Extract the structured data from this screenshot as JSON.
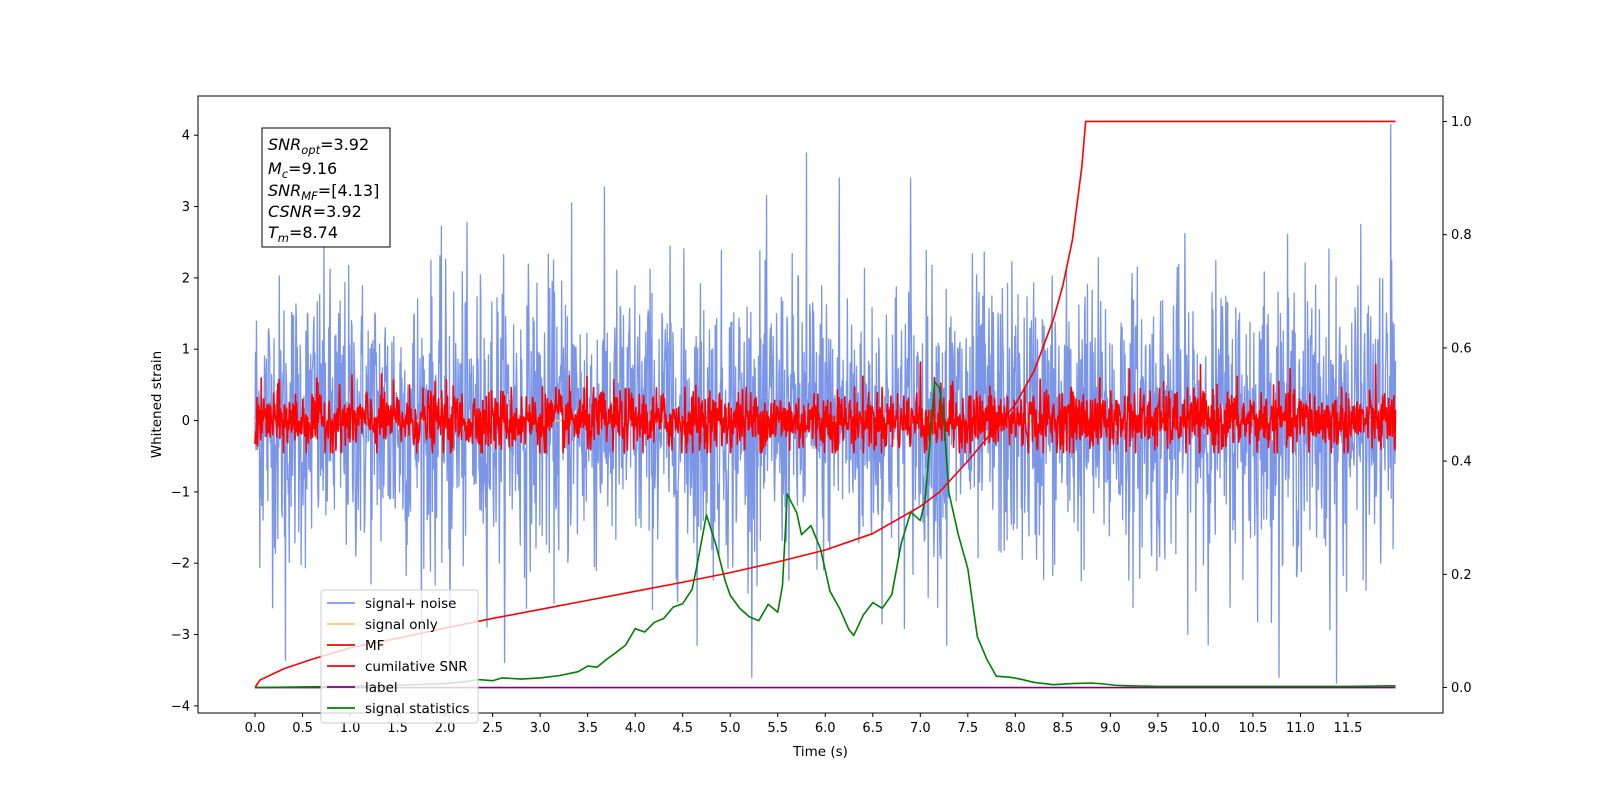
{
  "chart_data": {
    "type": "line",
    "xlabel": "Time (s)",
    "ylabel": "Whitened strain",
    "xlim": [
      -0.6,
      12.5
    ],
    "ylim": [
      -4.1,
      4.55
    ],
    "ylim_right": [
      -0.045,
      1.045
    ],
    "x_ticks": [
      0.0,
      0.5,
      1.0,
      1.5,
      2.0,
      2.5,
      3.0,
      3.5,
      4.0,
      4.5,
      5.0,
      5.5,
      6.0,
      6.5,
      7.0,
      7.5,
      8.0,
      8.5,
      9.0,
      9.5,
      10.0,
      10.5,
      11.0,
      11.5
    ],
    "x_tick_labels": [
      "0.0",
      "0.5",
      "1.0",
      "1.5",
      "2.0",
      "2.5",
      "3.0",
      "3.5",
      "4.0",
      "4.5",
      "5.0",
      "5.5",
      "6.0",
      "6.5",
      "7.0",
      "7.5",
      "8.0",
      "8.5",
      "9.0",
      "9.5",
      "10.0",
      "10.5",
      "11.0",
      "11.5"
    ],
    "y_ticks_left": [
      -4,
      -3,
      -2,
      -1,
      0,
      1,
      2,
      3,
      4
    ],
    "y_tick_labels_left": [
      "−4",
      "−3",
      "−2",
      "−1",
      "0",
      "1",
      "2",
      "3",
      "4"
    ],
    "y_ticks_right": [
      0.0,
      0.2,
      0.4,
      0.6,
      0.8,
      1.0
    ],
    "y_tick_labels_right": [
      "0.0",
      "0.2",
      "0.4",
      "0.6",
      "0.8",
      "1.0"
    ],
    "grid": false,
    "legend_position": "lower-left",
    "annotation": {
      "SNR_opt": "3.92",
      "M_c": "9.16",
      "SNR_MF": "[4.13]",
      "CSNR": "3.92",
      "T_m": "8.74"
    },
    "series": [
      {
        "name": "signal+ noise",
        "axis": "left",
        "color": "#7b95e8",
        "kind": "noise",
        "x_range": [
          0.0,
          12.0
        ],
        "std": 1.0,
        "min": -3.6,
        "max": 4.15,
        "spikes": [
          [
            0.32,
            -3.36
          ],
          [
            2.05,
            -3.3
          ],
          [
            3.33,
            3.05
          ],
          [
            4.65,
            -3.15
          ],
          [
            5.8,
            3.75
          ],
          [
            6.15,
            3.4
          ],
          [
            6.9,
            3.4
          ],
          [
            7.28,
            -3.15
          ],
          [
            11.38,
            -3.68
          ],
          [
            11.95,
            4.15
          ]
        ]
      },
      {
        "name": "signal only",
        "axis": "left",
        "color": "#f5c96a",
        "kind": "flat",
        "x": [
          0.0,
          12.0
        ],
        "y": [
          0.0,
          0.0
        ]
      },
      {
        "name": "MF",
        "axis": "left",
        "color": "#ff0000",
        "kind": "noise",
        "x_range": [
          0.0,
          12.0
        ],
        "std": 0.22,
        "min": -0.45,
        "max": 0.8,
        "spikes": [
          [
            7.0,
            0.82
          ],
          [
            9.2,
            0.72
          ]
        ]
      },
      {
        "name": "cumilative SNR",
        "axis": "right",
        "color": "#ff0000",
        "x": [
          0.0,
          0.05,
          0.3,
          0.6,
          1.0,
          1.5,
          2.0,
          2.5,
          3.0,
          3.5,
          4.0,
          4.5,
          5.0,
          5.5,
          6.0,
          6.5,
          7.0,
          7.2,
          7.5,
          7.8,
          8.0,
          8.2,
          8.4,
          8.5,
          8.6,
          8.7,
          8.74,
          9.0,
          10.0,
          11.0,
          12.0
        ],
        "y": [
          0.0,
          0.013,
          0.033,
          0.05,
          0.07,
          0.087,
          0.105,
          0.122,
          0.138,
          0.154,
          0.17,
          0.186,
          0.203,
          0.222,
          0.243,
          0.272,
          0.32,
          0.345,
          0.4,
          0.46,
          0.5,
          0.56,
          0.65,
          0.71,
          0.79,
          0.92,
          1.0,
          1.0,
          1.0,
          1.0,
          1.0
        ]
      },
      {
        "name": "label",
        "axis": "right",
        "color": "#800080",
        "x": [
          0.0,
          12.0
        ],
        "y": [
          0.0,
          0.0
        ]
      },
      {
        "name": "signal statistics",
        "axis": "right",
        "color": "#008000",
        "x": [
          0.0,
          0.5,
          1.0,
          1.5,
          2.0,
          2.2,
          2.35,
          2.5,
          2.6,
          2.8,
          3.0,
          3.2,
          3.4,
          3.5,
          3.6,
          3.7,
          3.8,
          3.9,
          4.0,
          4.1,
          4.2,
          4.3,
          4.4,
          4.5,
          4.6,
          4.65,
          4.75,
          4.85,
          4.95,
          5.0,
          5.1,
          5.2,
          5.3,
          5.4,
          5.5,
          5.55,
          5.6,
          5.65,
          5.7,
          5.75,
          5.85,
          5.95,
          6.05,
          6.15,
          6.25,
          6.3,
          6.4,
          6.5,
          6.6,
          6.7,
          6.8,
          6.9,
          7.0,
          7.05,
          7.1,
          7.15,
          7.2,
          7.25,
          7.3,
          7.4,
          7.5,
          7.6,
          7.7,
          7.8,
          7.95,
          8.05,
          8.2,
          8.4,
          8.6,
          8.8,
          8.95,
          9.05,
          9.2,
          9.5,
          10.0,
          11.0,
          11.5,
          12.0
        ],
        "y": [
          0.0,
          0.001,
          0.002,
          0.004,
          0.007,
          0.01,
          0.014,
          0.012,
          0.017,
          0.015,
          0.017,
          0.021,
          0.028,
          0.038,
          0.036,
          0.05,
          0.062,
          0.075,
          0.104,
          0.098,
          0.115,
          0.122,
          0.142,
          0.148,
          0.174,
          0.215,
          0.305,
          0.252,
          0.187,
          0.163,
          0.14,
          0.125,
          0.118,
          0.147,
          0.133,
          0.18,
          0.342,
          0.325,
          0.309,
          0.27,
          0.286,
          0.245,
          0.17,
          0.14,
          0.102,
          0.092,
          0.128,
          0.15,
          0.14,
          0.164,
          0.255,
          0.31,
          0.295,
          0.33,
          0.43,
          0.54,
          0.53,
          0.47,
          0.345,
          0.27,
          0.21,
          0.09,
          0.05,
          0.02,
          0.018,
          0.015,
          0.009,
          0.005,
          0.007,
          0.008,
          0.006,
          0.004,
          0.003,
          0.002,
          0.002,
          0.002,
          0.002,
          0.003
        ]
      }
    ]
  }
}
